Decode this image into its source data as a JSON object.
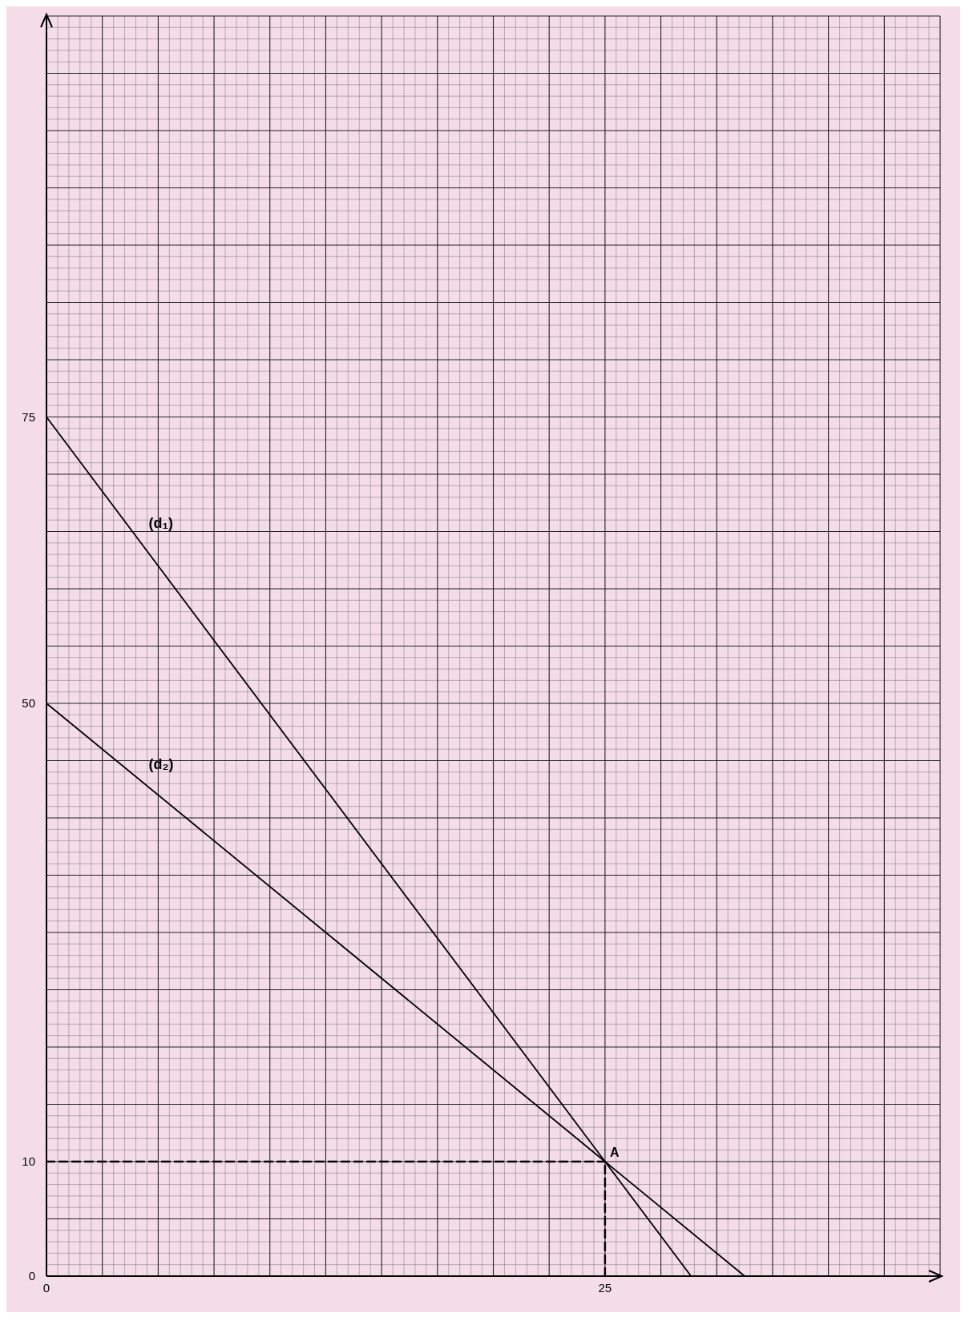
{
  "chart_data": {
    "type": "line",
    "xlim": [
      0,
      40
    ],
    "ylim": [
      0,
      110
    ],
    "xticks": [
      0,
      {
        "value": 2.5,
        "label": null
      },
      {
        "value": 5,
        "label": null
      },
      {
        "value": 7.5,
        "label": null
      },
      {
        "value": 10,
        "label": null
      },
      {
        "value": 12.5,
        "label": null
      },
      {
        "value": 15,
        "label": null
      },
      {
        "value": 17.5,
        "label": null
      },
      {
        "value": 20,
        "label": null
      },
      {
        "value": 22.5,
        "label": null
      },
      25,
      {
        "value": 27.5,
        "label": null
      },
      {
        "value": 30,
        "label": null
      },
      {
        "value": 32.5,
        "label": null
      },
      {
        "value": 35,
        "label": null
      },
      {
        "value": 37.5,
        "label": null
      },
      {
        "value": 40,
        "label": null
      }
    ],
    "yticks": [
      0,
      {
        "value": 5,
        "label": null
      },
      10,
      {
        "value": 15,
        "label": null
      },
      {
        "value": 20,
        "label": null
      },
      {
        "value": 25,
        "label": null
      },
      {
        "value": 30,
        "label": null
      },
      {
        "value": 35,
        "label": null
      },
      {
        "value": 40,
        "label": null
      },
      {
        "value": 45,
        "label": null
      },
      50,
      {
        "value": 55,
        "label": null
      },
      {
        "value": 60,
        "label": null
      },
      {
        "value": 65,
        "label": null
      },
      {
        "value": 70,
        "label": null
      },
      75,
      {
        "value": 80,
        "label": null
      },
      {
        "value": 85,
        "label": null
      },
      {
        "value": 90,
        "label": null
      },
      {
        "value": 95,
        "label": null
      },
      {
        "value": 100,
        "label": null
      },
      {
        "value": 105,
        "label": null
      },
      {
        "value": 110,
        "label": null
      }
    ],
    "grid": true,
    "series": [
      {
        "name": "(d₁)",
        "color": "#000000",
        "x": [
          0,
          25,
          28.85
        ],
        "values": [
          75,
          10,
          0
        ],
        "line_style": "solid"
      },
      {
        "name": "(d₂)",
        "color": "#000000",
        "x": [
          0,
          25,
          31.25
        ],
        "values": [
          50,
          10,
          0
        ],
        "line_style": "solid"
      },
      {
        "color": "#000000",
        "x": [
          0,
          25
        ],
        "values": [
          10,
          10
        ],
        "line_style": "dashed"
      },
      {
        "color": "#000000",
        "x": [
          25,
          25
        ],
        "values": [
          0,
          10
        ],
        "line_style": "dashed"
      }
    ],
    "annotations": [
      {
        "text": "A",
        "x": 25,
        "y": 10
      }
    ]
  }
}
